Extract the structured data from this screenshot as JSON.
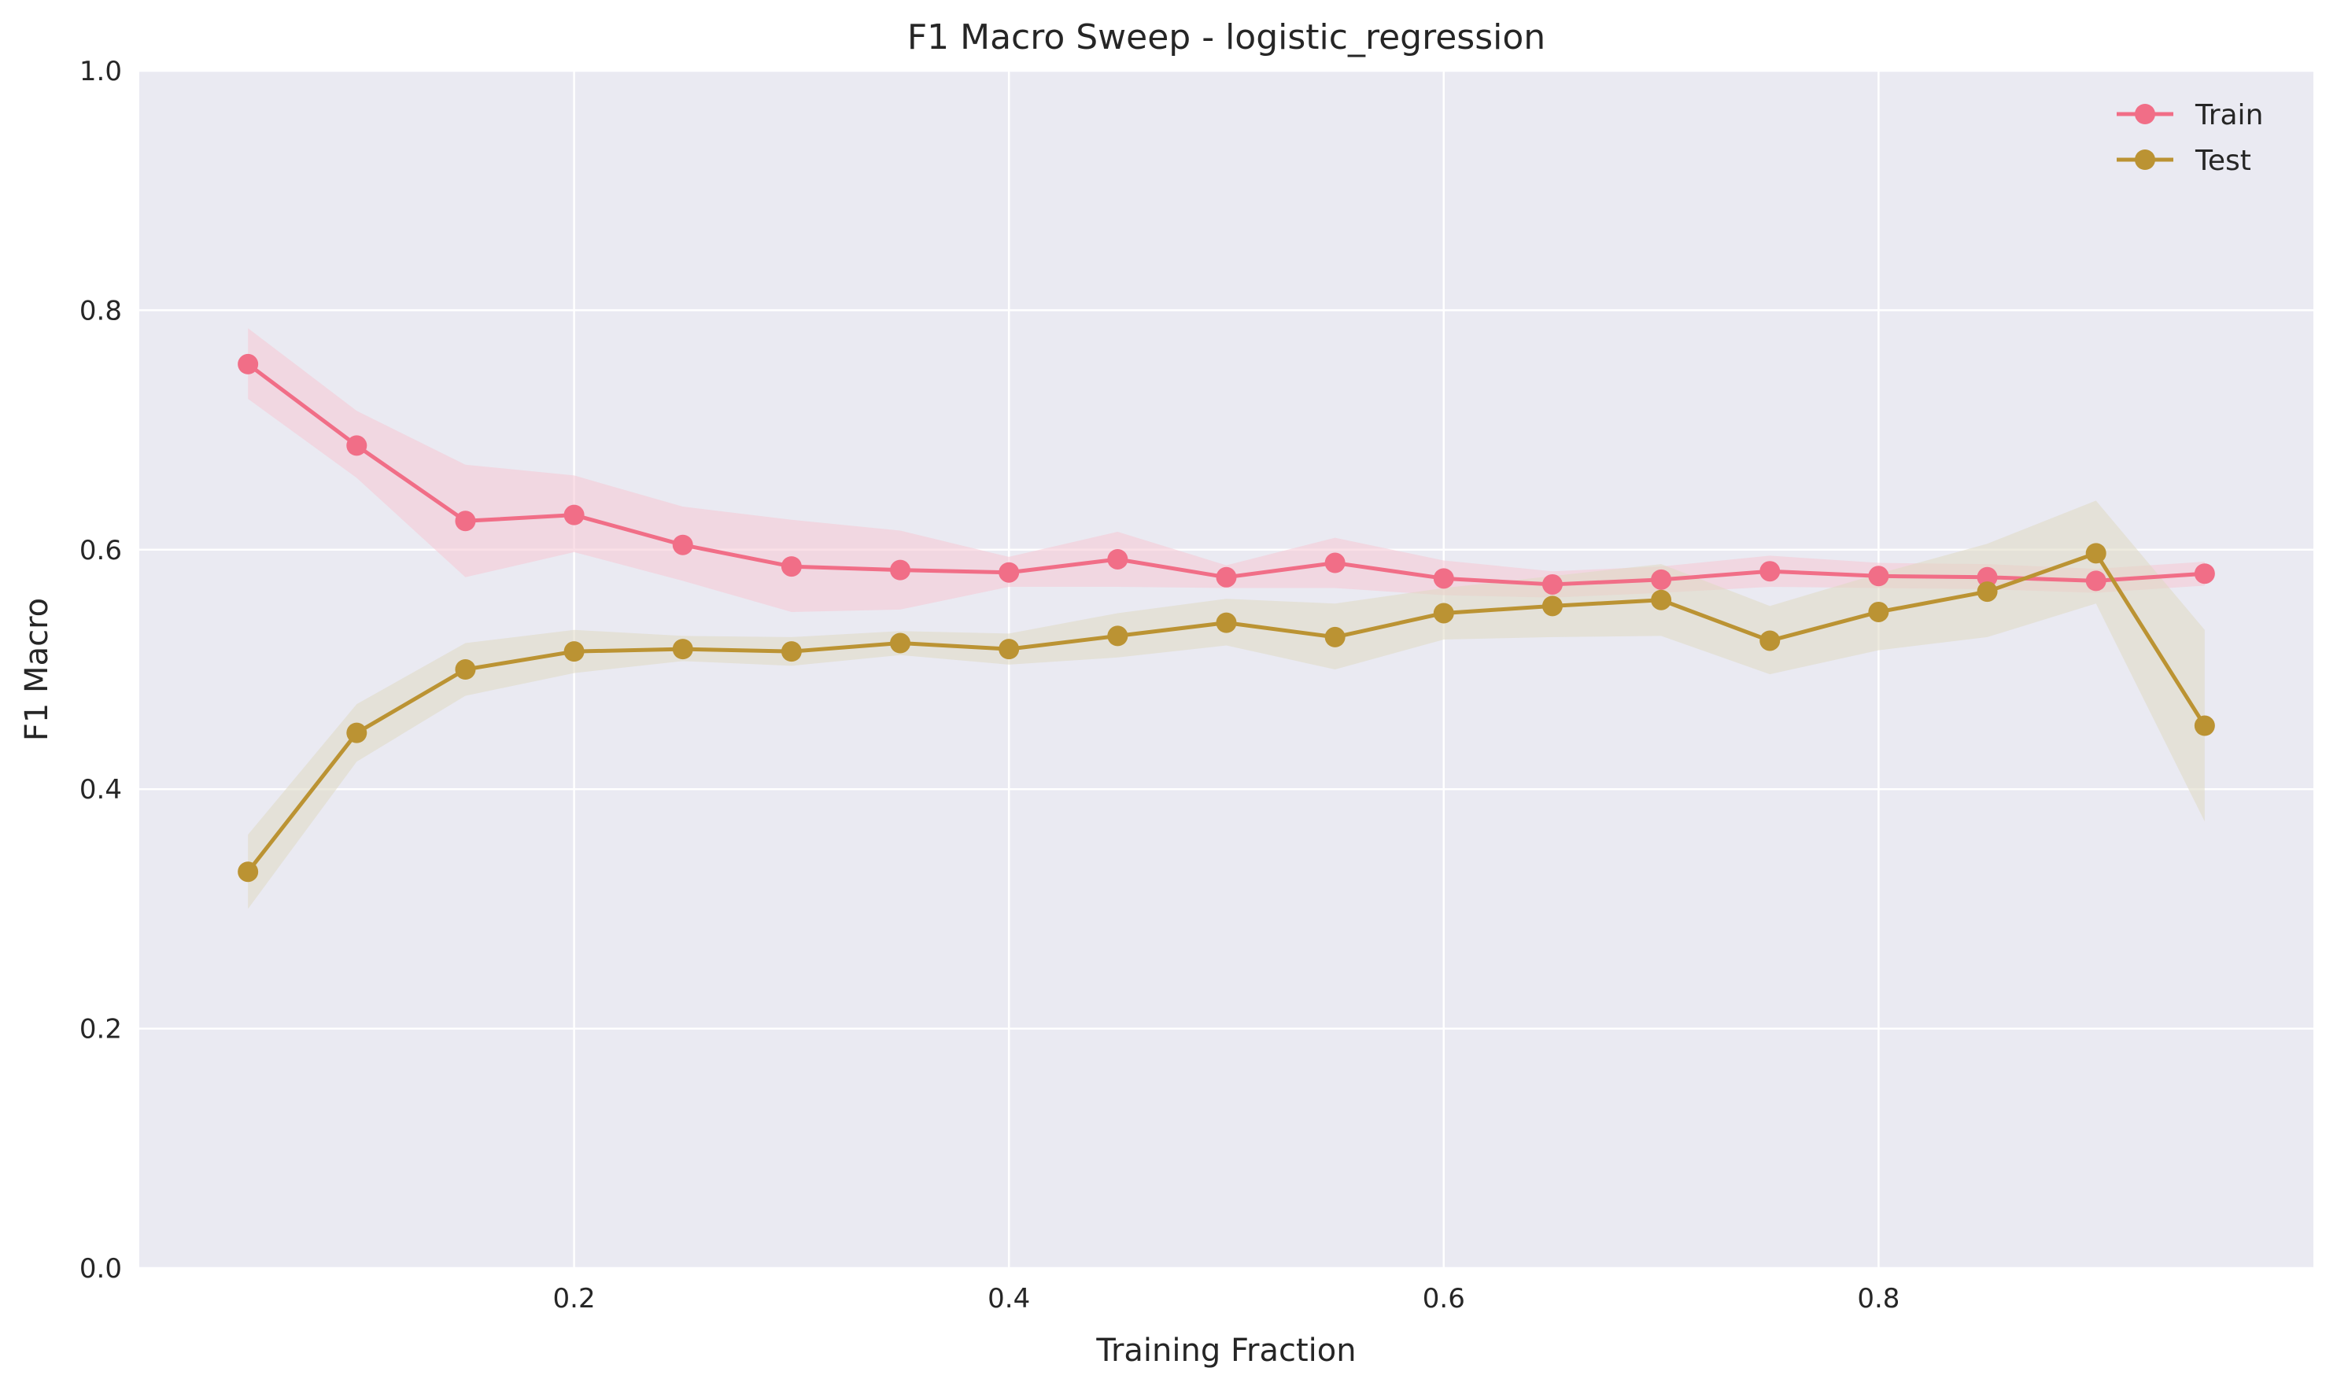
{
  "chart_data": {
    "type": "line",
    "title": "F1 Macro Sweep - logistic_regression",
    "xlabel": "Training Fraction",
    "ylabel": "F1 Macro",
    "xlim": [
      0.0,
      1.0
    ],
    "ylim": [
      0.0,
      1.0
    ],
    "xticks": [
      0.2,
      0.4,
      0.6,
      0.8
    ],
    "xtick_labels": [
      "0.2",
      "0.4",
      "0.6",
      "0.8"
    ],
    "yticks": [
      0.0,
      0.2,
      0.4,
      0.6,
      0.8,
      1.0
    ],
    "ytick_labels": [
      "0.0",
      "0.2",
      "0.4",
      "0.6",
      "0.8",
      "1.0"
    ],
    "grid": true,
    "legend_position": "top-right",
    "x": [
      0.05,
      0.1,
      0.15,
      0.2,
      0.25,
      0.3,
      0.35,
      0.4,
      0.45,
      0.5,
      0.55,
      0.6,
      0.65,
      0.7,
      0.75,
      0.8,
      0.85,
      0.9,
      0.95
    ],
    "series": [
      {
        "name": "Train",
        "color": "#f16e87",
        "band_color": "#f6c6d3",
        "values": [
          0.755,
          0.687,
          0.624,
          0.629,
          0.604,
          0.586,
          0.583,
          0.581,
          0.592,
          0.577,
          0.589,
          0.576,
          0.571,
          0.575,
          0.582,
          0.578,
          0.577,
          0.574,
          0.58
        ],
        "band_lower": [
          0.726,
          0.66,
          0.577,
          0.598,
          0.574,
          0.548,
          0.55,
          0.569,
          0.569,
          0.568,
          0.568,
          0.562,
          0.56,
          0.564,
          0.569,
          0.568,
          0.567,
          0.564,
          0.57
        ],
        "band_upper": [
          0.785,
          0.716,
          0.671,
          0.662,
          0.636,
          0.625,
          0.616,
          0.594,
          0.615,
          0.587,
          0.61,
          0.591,
          0.582,
          0.586,
          0.595,
          0.589,
          0.588,
          0.584,
          0.59
        ]
      },
      {
        "name": "Test",
        "color": "#bb9333",
        "band_color": "#dfd8c2",
        "values": [
          0.331,
          0.447,
          0.5,
          0.515,
          0.517,
          0.515,
          0.522,
          0.517,
          0.528,
          0.539,
          0.527,
          0.547,
          0.553,
          0.558,
          0.524,
          0.548,
          0.565,
          0.597,
          0.453
        ],
        "band_lower": [
          0.3,
          0.423,
          0.478,
          0.497,
          0.507,
          0.503,
          0.512,
          0.504,
          0.51,
          0.52,
          0.5,
          0.525,
          0.527,
          0.528,
          0.496,
          0.516,
          0.527,
          0.555,
          0.373
        ],
        "band_upper": [
          0.362,
          0.471,
          0.522,
          0.533,
          0.528,
          0.527,
          0.532,
          0.53,
          0.547,
          0.559,
          0.555,
          0.568,
          0.578,
          0.588,
          0.553,
          0.58,
          0.605,
          0.641,
          0.533
        ]
      }
    ]
  }
}
